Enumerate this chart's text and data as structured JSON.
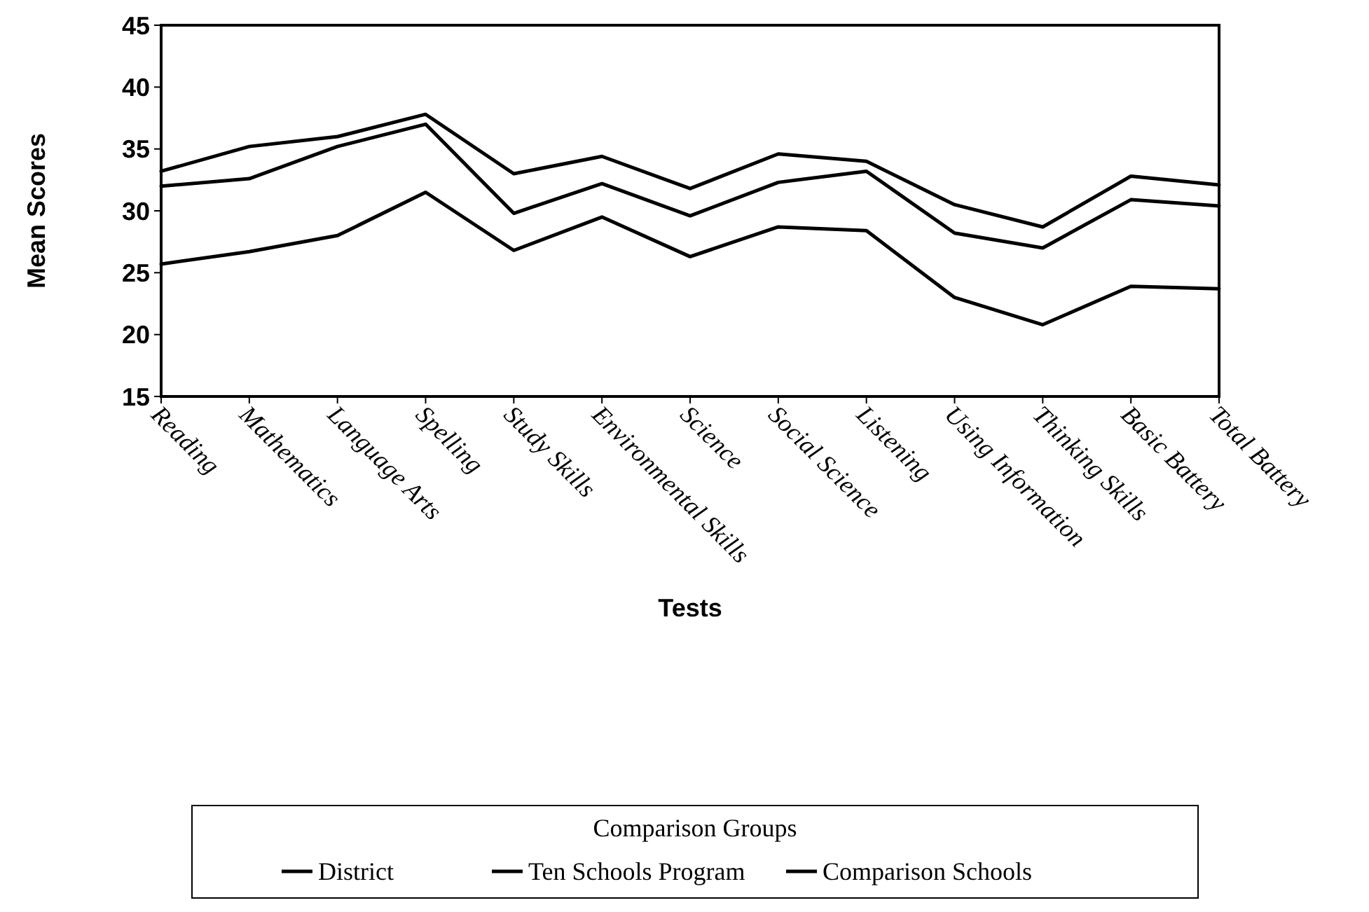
{
  "chart_data": {
    "type": "line",
    "xlabel": "Tests",
    "ylabel": "Mean Scores",
    "legend_title": "Comparison Groups",
    "legend": "bottom",
    "grid": false,
    "marker": "none",
    "line_style": "solid",
    "categories": [
      "Reading",
      "Mathematics",
      "Language Arts",
      "Spelling",
      "Study Skills",
      "Environmental Skills",
      "Science",
      "Social Science",
      "Listening",
      "Using Information",
      "Thinking Skills",
      "Basic Battery",
      "Total Battery"
    ],
    "ylim": [
      15,
      45
    ],
    "yticks": [
      15,
      20,
      25,
      30,
      35,
      40,
      45
    ],
    "series": [
      {
        "name": "District",
        "color": "#000000",
        "values": [
          33.2,
          35.2,
          36,
          37.8,
          33,
          34.4,
          31.8,
          34.6,
          34,
          30.5,
          28.7,
          32.8,
          32.1
        ]
      },
      {
        "name": "Ten Schools Program",
        "color": "#000000",
        "values": [
          25.7,
          26.7,
          28,
          31.5,
          26.8,
          29.5,
          26.3,
          28.7,
          28.4,
          23,
          20.8,
          23.9,
          23.7
        ]
      },
      {
        "name": "Comparison Schools",
        "color": "#000000",
        "values": [
          32,
          32.6,
          35.2,
          37,
          29.8,
          32.2,
          29.6,
          32.3,
          33.2,
          28.2,
          27,
          30.9,
          30.4
        ]
      }
    ]
  }
}
